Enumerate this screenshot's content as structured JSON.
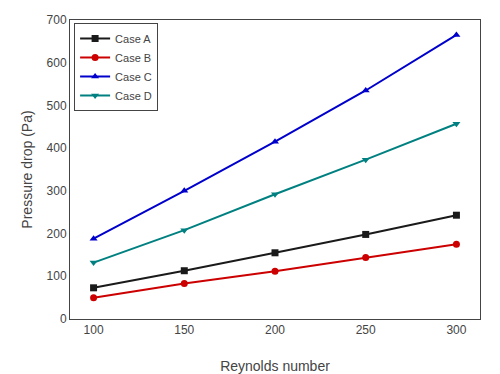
{
  "chart_data": {
    "type": "line",
    "x": [
      100,
      150,
      200,
      250,
      300
    ],
    "series": [
      {
        "name": "Case A",
        "color": "#1a1a1a",
        "marker": "square",
        "values": [
          73,
          113,
          155,
          198,
          243
        ]
      },
      {
        "name": "Case B",
        "color": "#cc0000",
        "marker": "circle",
        "values": [
          50,
          83,
          112,
          144,
          175
        ]
      },
      {
        "name": "Case C",
        "color": "#0000cc",
        "marker": "triangle-up",
        "values": [
          188,
          300,
          415,
          535,
          665
        ]
      },
      {
        "name": "Case D",
        "color": "#008080",
        "marker": "triangle-down",
        "values": [
          132,
          208,
          292,
          373,
          457
        ]
      }
    ],
    "xlabel": "Reynolds number",
    "ylabel": "Pressure drop (Pa)",
    "xlim": [
      87,
      313
    ],
    "ylim": [
      0,
      700
    ],
    "xticks": [
      100,
      150,
      200,
      250,
      300
    ],
    "yticks": [
      0,
      100,
      200,
      300,
      400,
      500,
      600,
      700
    ],
    "grid": false,
    "legend": "upper left"
  }
}
